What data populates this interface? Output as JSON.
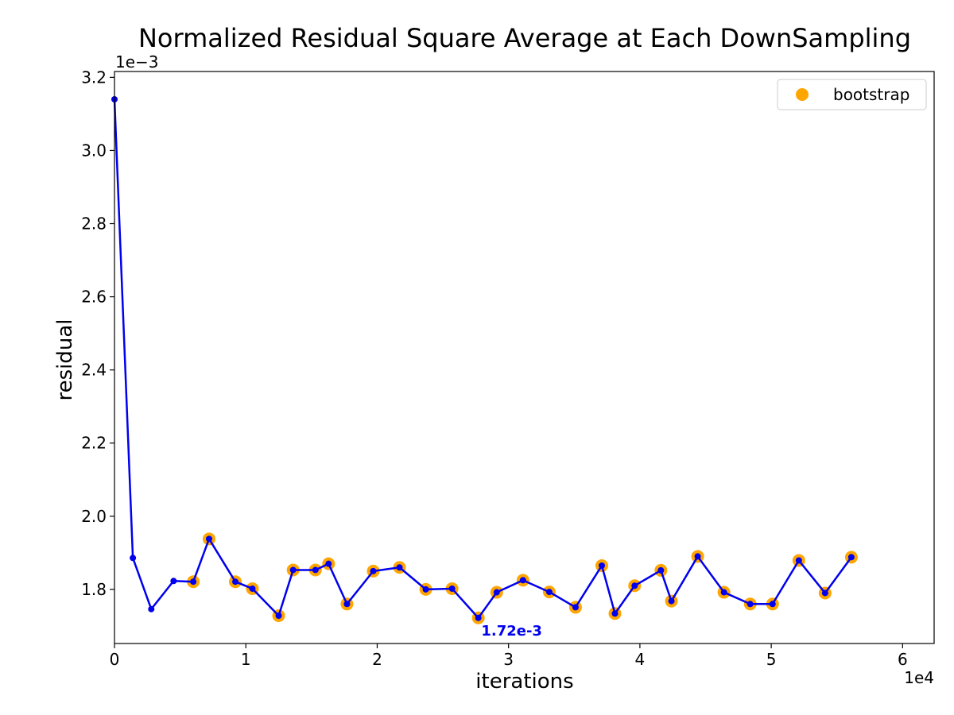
{
  "chart_data": {
    "type": "line",
    "title": "Normalized Residual Square Average at Each DownSampling",
    "xlabel": "iterations",
    "ylabel": "residual",
    "x_multiplier_label": "1e4",
    "y_multiplier_label": "1e−3",
    "x_ticks": [
      0,
      1,
      2,
      3,
      4,
      5,
      6
    ],
    "y_ticks": [
      1.8,
      2.0,
      2.2,
      2.4,
      2.6,
      2.8,
      3.0,
      3.2
    ],
    "x_tick_labels": [
      "0",
      "1",
      "2",
      "3",
      "4",
      "5",
      "6"
    ],
    "y_tick_labels": [
      "1.8",
      "2.0",
      "2.2",
      "2.4",
      "2.6",
      "2.8",
      "3.0",
      "3.2"
    ],
    "xlim": [
      0,
      6.24
    ],
    "ylim": [
      1.652,
      3.216
    ],
    "grid": false,
    "legend": {
      "position": "top-right",
      "entries": [
        "bootstrap"
      ]
    },
    "colors": {
      "line": "#0000ee",
      "bootstrap": "#ffa500",
      "marker": "#0000ee",
      "annotation": "#0000ee"
    },
    "series": [
      {
        "kind": "line",
        "x": [
          0,
          0.14,
          0.28,
          0.45,
          0.6,
          0.72,
          0.92,
          1.05,
          1.25,
          1.36,
          1.53,
          1.63,
          1.77,
          1.97,
          2.17,
          2.37,
          2.57,
          2.77,
          2.91,
          3.11,
          3.31,
          3.51,
          3.71,
          3.81,
          3.96,
          4.16,
          4.24,
          4.44,
          4.64,
          4.84,
          5.01,
          5.21,
          5.41,
          5.61
        ],
        "y": [
          3.14,
          1.886,
          1.746,
          1.823,
          1.821,
          1.938,
          1.821,
          1.802,
          1.728,
          1.853,
          1.853,
          1.87,
          1.76,
          1.85,
          1.86,
          1.8,
          1.802,
          1.722,
          1.792,
          1.825,
          1.793,
          1.751,
          1.865,
          1.734,
          1.81,
          1.852,
          1.768,
          1.89,
          1.792,
          1.76,
          1.76,
          1.879,
          1.79,
          1.888
        ]
      },
      {
        "name": "bootstrap",
        "kind": "scatter",
        "x": [
          0.6,
          0.72,
          0.92,
          1.05,
          1.25,
          1.36,
          1.53,
          1.63,
          1.77,
          1.97,
          2.17,
          2.37,
          2.57,
          2.77,
          2.91,
          3.11,
          3.31,
          3.51,
          3.71,
          3.81,
          3.96,
          4.16,
          4.24,
          4.44,
          4.64,
          4.84,
          5.01,
          5.21,
          5.41,
          5.61
        ],
        "y": [
          1.821,
          1.938,
          1.821,
          1.802,
          1.728,
          1.853,
          1.853,
          1.87,
          1.76,
          1.85,
          1.86,
          1.8,
          1.802,
          1.722,
          1.792,
          1.825,
          1.793,
          1.751,
          1.865,
          1.734,
          1.81,
          1.852,
          1.768,
          1.89,
          1.792,
          1.76,
          1.76,
          1.879,
          1.79,
          1.888
        ]
      }
    ],
    "annotations": [
      {
        "text": "1.72e-3",
        "x": 2.77,
        "y": 1.722
      }
    ]
  }
}
